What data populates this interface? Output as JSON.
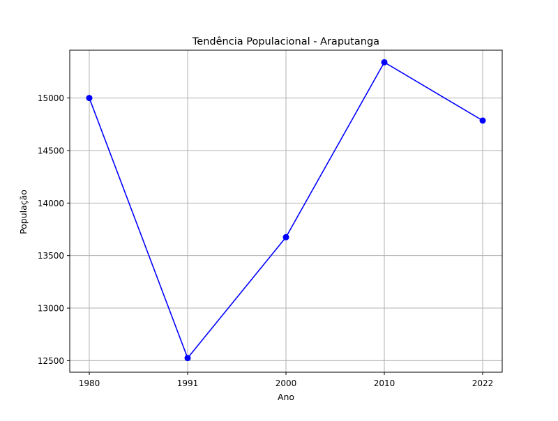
{
  "chart_data": {
    "type": "line",
    "title": "Tendência Populacional - Araputanga",
    "xlabel": "Ano",
    "ylabel": "População",
    "categories": [
      "1980",
      "1991",
      "2000",
      "2010",
      "2022"
    ],
    "series": [
      {
        "values": [
          15000,
          12525,
          13675,
          15340,
          14785
        ]
      }
    ],
    "ylim": [
      12390,
      15455
    ],
    "yticks": [
      12500,
      13000,
      13500,
      14000,
      14500,
      15000
    ],
    "ytick_labels": [
      "12500",
      "13000",
      "13500",
      "14000",
      "14500",
      "15000"
    ],
    "grid": true,
    "colors": {
      "line": "#0000ff",
      "grid": "#b0b0b0",
      "axis": "#000000"
    }
  }
}
